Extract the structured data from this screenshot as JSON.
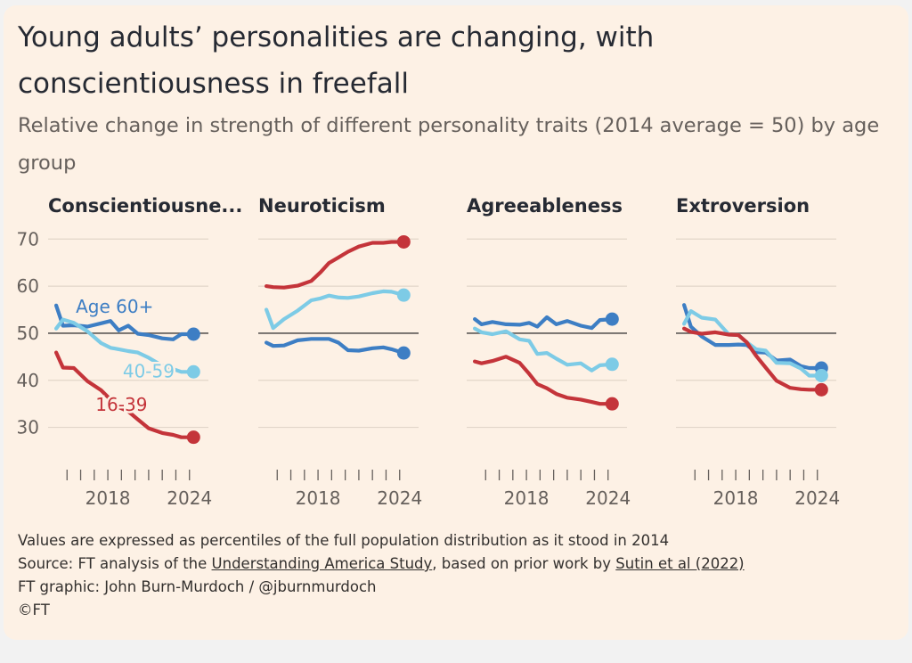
{
  "title": "Young adults’ personalities are changing, with conscientiousness in freefall",
  "subtitle": "Relative change in strength of different personality traits (2014 average = 50) by age group",
  "footer": {
    "note": "Values are expressed as percentiles of the full population distribution as it stood in 2014",
    "source_prefix": "Source: FT analysis of the ",
    "source_link1": "Understanding America Study",
    "source_middle": ", based on prior work by ",
    "source_link2": "Sutin et al (2022)",
    "credit": "FT graphic: John Burn-Murdoch / @jburnmurdoch",
    "copyright": "©FT"
  },
  "colors": {
    "age_60_plus": "#3d7ec4",
    "age_40_59": "#7dcbe6",
    "age_16_39": "#c4343a",
    "baseline": "#5c5856",
    "grid": "#e2d6c9",
    "axis_text": "#66605c"
  },
  "chart_data": {
    "type": "line",
    "ylim": [
      25,
      71
    ],
    "yticks": [
      30,
      40,
      50,
      60,
      70
    ],
    "xlim": [
      2014,
      2025
    ],
    "xticks": [
      2015,
      2016,
      2017,
      2018,
      2019,
      2020,
      2021,
      2022,
      2023,
      2024
    ],
    "xtick_labels": [
      "2018",
      "2024"
    ],
    "xtick_label_years": [
      2018,
      2024
    ],
    "baseline": 50,
    "panels": [
      {
        "title": "Conscientiousne...",
        "series": [
          {
            "name": "Age 60+",
            "color_key": "age_60_plus",
            "x": [
              2014.2,
              2014.7,
              2015.5,
              2016.5,
              2017.5,
              2018.2,
              2018.8,
              2019.5,
              2020.2,
              2021.0,
              2022.0,
              2022.8,
              2023.4,
              2024.3
            ],
            "y": [
              55.9,
              51.6,
              51.7,
              51.4,
              52.1,
              52.6,
              50.6,
              51.6,
              49.9,
              49.6,
              48.9,
              48.7,
              49.8,
              49.8
            ]
          },
          {
            "name": "40-59",
            "color_key": "age_40_59",
            "x": [
              2014.2,
              2014.7,
              2015.5,
              2016.5,
              2017.5,
              2018.2,
              2018.8,
              2019.5,
              2020.2,
              2021.0,
              2022.0,
              2022.8,
              2023.4,
              2024.3
            ],
            "y": [
              51.0,
              52.9,
              52.2,
              50.4,
              47.9,
              46.9,
              46.6,
              46.2,
              45.9,
              44.8,
              43.1,
              42.4,
              41.8,
              41.8
            ]
          },
          {
            "name": "16-39",
            "color_key": "age_16_39",
            "x": [
              2014.2,
              2014.7,
              2015.5,
              2016.5,
              2017.5,
              2018.2,
              2018.8,
              2019.5,
              2020.2,
              2021.0,
              2022.0,
              2022.8,
              2023.4,
              2024.3
            ],
            "y": [
              45.9,
              42.7,
              42.6,
              39.8,
              37.9,
              35.9,
              34.3,
              33.4,
              31.7,
              29.8,
              28.8,
              28.4,
              27.9,
              27.9
            ]
          }
        ],
        "labels": [
          {
            "text": "Age 60+",
            "color_key": "age_60_plus",
            "x": 2018.5,
            "y": 54.3
          },
          {
            "text": "40-59",
            "color_key": "age_40_59",
            "x": 2021.0,
            "y": 40.6
          },
          {
            "text": "16-39",
            "color_key": "age_16_39",
            "x": 2019.0,
            "y": 33.5
          }
        ]
      },
      {
        "title": "Neuroticism",
        "series": [
          {
            "name": "Age 60+",
            "color_key": "age_60_plus",
            "x": [
              2014.2,
              2014.7,
              2015.5,
              2016.5,
              2017.5,
              2018.2,
              2018.8,
              2019.5,
              2020.2,
              2021.0,
              2022.0,
              2022.8,
              2023.4,
              2024.3
            ],
            "y": [
              48.0,
              47.3,
              47.4,
              48.5,
              48.8,
              48.8,
              48.8,
              48.0,
              46.4,
              46.3,
              46.8,
              47.0,
              46.6,
              45.8
            ]
          },
          {
            "name": "40-59",
            "color_key": "age_40_59",
            "x": [
              2014.2,
              2014.7,
              2015.5,
              2016.5,
              2017.5,
              2018.2,
              2018.8,
              2019.5,
              2020.2,
              2021.0,
              2022.0,
              2022.8,
              2023.4,
              2024.3
            ],
            "y": [
              55.0,
              51.1,
              53.0,
              54.8,
              57.0,
              57.4,
              58.0,
              57.6,
              57.5,
              57.8,
              58.5,
              58.9,
              58.8,
              58.1
            ]
          },
          {
            "name": "16-39",
            "color_key": "age_16_39",
            "x": [
              2014.2,
              2014.7,
              2015.5,
              2016.5,
              2017.5,
              2018.2,
              2018.8,
              2019.5,
              2020.2,
              2021.0,
              2022.0,
              2022.8,
              2023.4,
              2024.3
            ],
            "y": [
              60.0,
              59.8,
              59.7,
              60.1,
              61.1,
              63.0,
              64.9,
              66.1,
              67.3,
              68.4,
              69.2,
              69.2,
              69.4,
              69.4
            ]
          }
        ],
        "labels": []
      },
      {
        "title": "Agreeableness",
        "series": [
          {
            "name": "Age 60+",
            "color_key": "age_60_plus",
            "x": [
              2014.2,
              2014.7,
              2015.5,
              2016.5,
              2017.5,
              2018.2,
              2018.8,
              2019.5,
              2020.2,
              2021.0,
              2022.0,
              2022.8,
              2023.4,
              2024.3
            ],
            "y": [
              53.0,
              51.9,
              52.4,
              51.9,
              51.8,
              52.2,
              51.4,
              53.4,
              51.9,
              52.6,
              51.6,
              51.1,
              52.8,
              53.0
            ]
          },
          {
            "name": "40-59",
            "color_key": "age_40_59",
            "x": [
              2014.2,
              2014.7,
              2015.5,
              2016.5,
              2017.5,
              2018.2,
              2018.8,
              2019.5,
              2020.2,
              2021.0,
              2022.0,
              2022.8,
              2023.4,
              2024.3
            ],
            "y": [
              51.0,
              50.2,
              49.8,
              50.4,
              48.7,
              48.4,
              45.6,
              45.8,
              44.6,
              43.3,
              43.6,
              42.1,
              43.2,
              43.4
            ]
          },
          {
            "name": "16-39",
            "color_key": "age_16_39",
            "x": [
              2014.2,
              2014.7,
              2015.5,
              2016.5,
              2017.5,
              2018.2,
              2018.8,
              2019.5,
              2020.2,
              2021.0,
              2022.0,
              2022.8,
              2023.4,
              2024.3
            ],
            "y": [
              44.0,
              43.6,
              44.1,
              45.0,
              43.7,
              41.4,
              39.2,
              38.3,
              37.1,
              36.3,
              35.9,
              35.4,
              35.0,
              35.0
            ]
          }
        ],
        "labels": []
      },
      {
        "title": "Extroversion",
        "series": [
          {
            "name": "Age 60+",
            "color_key": "age_60_plus",
            "x": [
              2014.2,
              2014.7,
              2015.5,
              2016.5,
              2017.5,
              2018.2,
              2018.8,
              2019.5,
              2020.2,
              2021.0,
              2022.0,
              2022.8,
              2023.4,
              2024.3
            ],
            "y": [
              56.0,
              51.4,
              49.3,
              47.5,
              47.5,
              47.6,
              47.5,
              46.0,
              45.9,
              44.2,
              44.4,
              43.0,
              42.6,
              42.6
            ]
          },
          {
            "name": "40-59",
            "color_key": "age_40_59",
            "x": [
              2014.2,
              2014.7,
              2015.5,
              2016.5,
              2017.5,
              2018.2,
              2018.8,
              2019.5,
              2020.2,
              2021.0,
              2022.0,
              2022.8,
              2023.4,
              2024.3
            ],
            "y": [
              52.0,
              54.7,
              53.3,
              52.9,
              49.7,
              49.6,
              48.1,
              46.6,
              46.3,
              43.7,
              43.6,
              42.5,
              41.0,
              41.0
            ]
          },
          {
            "name": "16-39",
            "color_key": "age_16_39",
            "x": [
              2014.2,
              2014.7,
              2015.5,
              2016.5,
              2017.5,
              2018.2,
              2018.8,
              2019.5,
              2020.2,
              2021.0,
              2022.0,
              2022.8,
              2023.4,
              2024.3
            ],
            "y": [
              51.0,
              50.3,
              49.9,
              50.2,
              49.7,
              49.6,
              48.1,
              45.2,
              42.7,
              39.9,
              38.4,
              38.1,
              38.0,
              38.0
            ]
          }
        ],
        "labels": []
      }
    ]
  }
}
